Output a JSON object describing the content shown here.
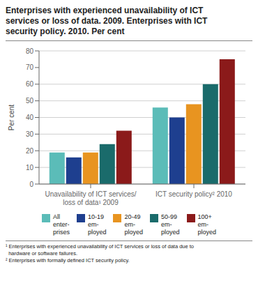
{
  "chart_data": {
    "type": "bar",
    "title": "Enterprises with experienced unavailability of ICT\nservices or loss of data. 2009. Enterprises with ICT\nsecurity policy. 2010. Per cent",
    "ylabel": "Per cent",
    "categories": [
      "Unavailability of ICT services/\nloss of data¹ 2009",
      "ICT security policy² 2010"
    ],
    "series": [
      {
        "name": "All\nenter-\nprises",
        "color": "#5bbcb8",
        "values": [
          19,
          46
        ]
      },
      {
        "name": "10-19\nem-\nployed",
        "color": "#1e3f8f",
        "values": [
          16,
          40
        ]
      },
      {
        "name": "20-49\nem-\nployed",
        "color": "#e89420",
        "values": [
          19,
          48
        ]
      },
      {
        "name": "50-99\nem-\nployed",
        "color": "#1a6b6b",
        "values": [
          24,
          60
        ]
      },
      {
        "name": "100+\nem-\nployed",
        "color": "#8b1a1a",
        "values": [
          32,
          75
        ]
      }
    ],
    "ylim": [
      0,
      80
    ],
    "yticks": [
      0,
      10,
      20,
      30,
      40,
      50,
      60,
      70,
      80
    ],
    "grid": true,
    "annotations": [
      "¹ Enterprises with experienced unavailability of ICT services or loss of data due to",
      "  hardware or software failures.",
      "² Enterprises with formally defined ICT security policy."
    ]
  }
}
